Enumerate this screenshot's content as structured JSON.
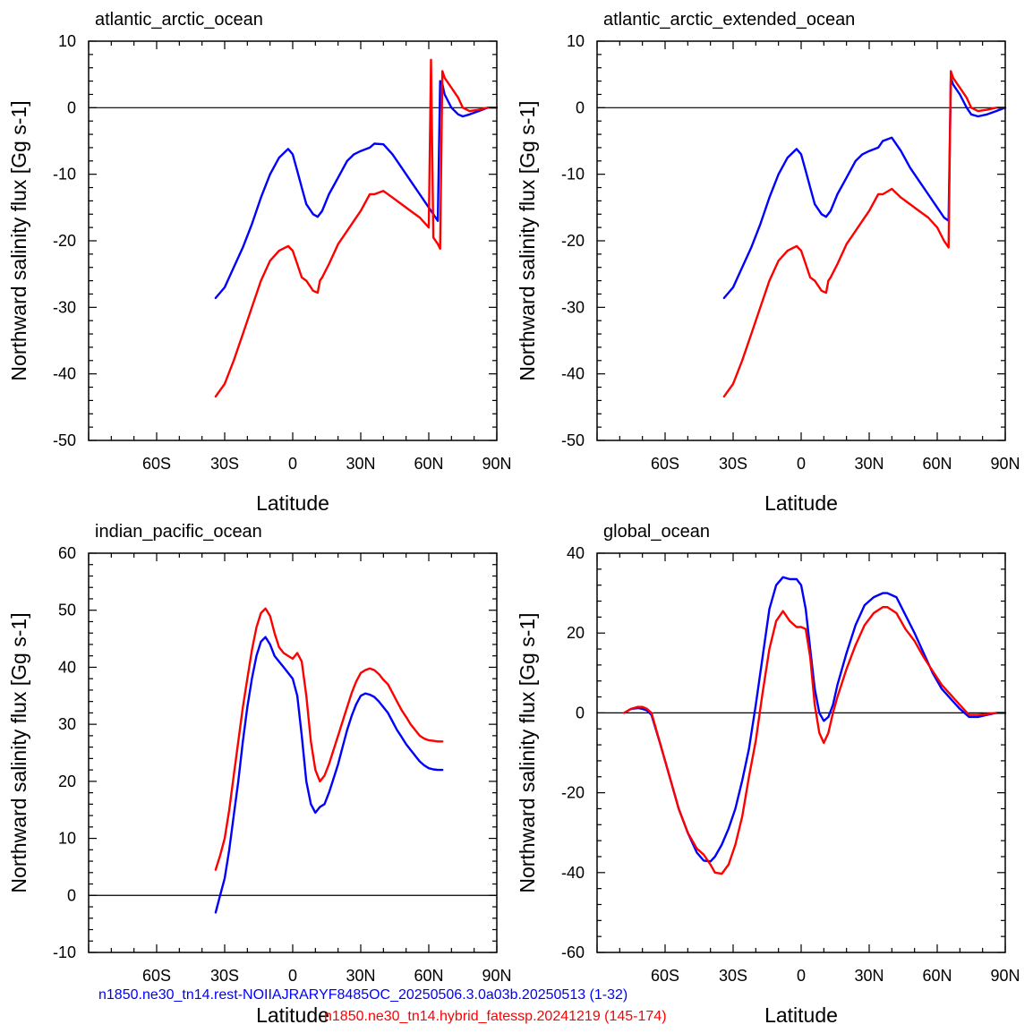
{
  "colors": {
    "run1": "#0000ff",
    "run2": "#ff0000",
    "axis": "#000000",
    "zero_line": "#000000"
  },
  "footer": {
    "run1_label": "n1850.ne30_tn14.rest-NOIIAJRARYF8485OC_20250506.3.0a03b.20250513 (1-32)",
    "run2_label": "n1850.ne30_tn14.hybrid_fatessp.20241219 (145-174)"
  },
  "chart_data": [
    {
      "type": "line",
      "title": "atlantic_arctic_ocean",
      "xlabel": "Latitude",
      "ylabel": "Northward salinity flux [Gg s-1]",
      "xlim": [
        -90,
        90
      ],
      "ylim": [
        -50,
        10
      ],
      "xticks": [
        -60,
        -30,
        0,
        30,
        60,
        90
      ],
      "xtick_labels": [
        "60S",
        "30S",
        "0",
        "30N",
        "60N",
        "90N"
      ],
      "yticks": [
        -50,
        -40,
        -30,
        -20,
        -10,
        0,
        10
      ],
      "ytick_labels": [
        "-50",
        "-40",
        "-30",
        "-20",
        "-10",
        "0",
        "10"
      ],
      "zero_line": true,
      "series": [
        {
          "name": "n1850.ne30_tn14.rest-NOIIAJRARYF8485OC_20250506.3.0a03b.20250513 (1-32)",
          "color": "#0000ff",
          "x": [
            -34,
            -30,
            -26,
            -22,
            -18,
            -14,
            -10,
            -6,
            -2,
            0,
            2,
            4,
            6,
            9,
            11,
            13,
            16,
            20,
            24,
            27,
            30,
            34,
            36,
            40,
            44,
            48,
            52,
            56,
            60,
            63,
            64,
            65,
            66,
            67,
            70,
            73,
            75,
            78,
            82,
            86,
            90
          ],
          "y": [
            -28.6,
            -27,
            -24,
            -21,
            -17.5,
            -13.5,
            -10,
            -7.5,
            -6.2,
            -7,
            -9.5,
            -12,
            -14.5,
            -16,
            -16.4,
            -15.5,
            -13,
            -10.5,
            -8,
            -7,
            -6.5,
            -6,
            -5.4,
            -5.5,
            -7,
            -9,
            -11,
            -13,
            -15,
            -16.5,
            -17,
            4,
            3.5,
            2,
            0,
            -1,
            -1.3,
            -1,
            -0.5,
            0,
            0
          ]
        },
        {
          "name": "n1850.ne30_tn14.hybrid_fatessp.20241219 (145-174)",
          "color": "#ff0000",
          "x": [
            -34,
            -30,
            -26,
            -22,
            -18,
            -14,
            -10,
            -6,
            -2,
            0,
            2,
            4,
            6,
            9,
            11,
            12,
            13,
            16,
            20,
            24,
            27,
            30,
            34,
            36,
            40,
            44,
            48,
            52,
            56,
            60,
            61,
            62,
            64,
            65,
            66,
            67,
            70,
            73,
            75,
            78,
            82,
            86,
            90
          ],
          "y": [
            -43.4,
            -41.5,
            -38,
            -34,
            -30,
            -26,
            -23,
            -21.5,
            -20.8,
            -21.5,
            -23.5,
            -25.5,
            -26,
            -27.5,
            -27.8,
            -26,
            -25.5,
            -23.5,
            -20.5,
            -18.5,
            -17,
            -15.5,
            -13,
            -13,
            -12.5,
            -13.5,
            -14.5,
            -15.5,
            -16.5,
            -18,
            7.2,
            -19.5,
            -20.5,
            -21.2,
            5.5,
            4.5,
            3,
            1.5,
            0,
            -0.5,
            -0.3,
            0,
            0
          ]
        }
      ]
    },
    {
      "type": "line",
      "title": "atlantic_arctic_extended_ocean",
      "xlabel": "Latitude",
      "ylabel": "Northward salinity flux [Gg s-1]",
      "xlim": [
        -90,
        90
      ],
      "ylim": [
        -50,
        10
      ],
      "xticks": [
        -60,
        -30,
        0,
        30,
        60,
        90
      ],
      "xtick_labels": [
        "60S",
        "30S",
        "0",
        "30N",
        "60N",
        "90N"
      ],
      "yticks": [
        -50,
        -40,
        -30,
        -20,
        -10,
        0,
        10
      ],
      "ytick_labels": [
        "-50",
        "-40",
        "-30",
        "-20",
        "-10",
        "0",
        "10"
      ],
      "zero_line": true,
      "series": [
        {
          "name": "n1850.ne30_tn14.rest-NOIIAJRARYF8485OC_20250506.3.0a03b.20250513 (1-32)",
          "color": "#0000ff",
          "x": [
            -34,
            -30,
            -26,
            -22,
            -18,
            -14,
            -10,
            -6,
            -2,
            0,
            2,
            4,
            6,
            9,
            11,
            13,
            16,
            20,
            24,
            27,
            30,
            34,
            36,
            40,
            44,
            48,
            52,
            56,
            60,
            63,
            65,
            66,
            67,
            70,
            73,
            75,
            78,
            82,
            86,
            90
          ],
          "y": [
            -28.6,
            -27,
            -24,
            -21,
            -17.5,
            -13.5,
            -10,
            -7.5,
            -6.2,
            -7,
            -9.5,
            -12,
            -14.5,
            -16,
            -16.4,
            -15.5,
            -13,
            -10.5,
            -8,
            -7,
            -6.5,
            -6,
            -5,
            -4.5,
            -6.5,
            -9,
            -11,
            -13,
            -15,
            -16.5,
            -17,
            4.5,
            3.5,
            2,
            0,
            -1,
            -1.3,
            -1,
            -0.5,
            0
          ]
        },
        {
          "name": "n1850.ne30_tn14.hybrid_fatessp.20241219 (145-174)",
          "color": "#ff0000",
          "x": [
            -34,
            -30,
            -26,
            -22,
            -18,
            -14,
            -10,
            -6,
            -2,
            0,
            2,
            4,
            6,
            9,
            11,
            12,
            13,
            16,
            20,
            24,
            27,
            30,
            34,
            36,
            40,
            44,
            48,
            52,
            56,
            60,
            63,
            65,
            66,
            67,
            70,
            73,
            75,
            78,
            82,
            86,
            90
          ],
          "y": [
            -43.4,
            -41.5,
            -38,
            -34,
            -30,
            -26,
            -23,
            -21.5,
            -20.8,
            -21.5,
            -23.5,
            -25.5,
            -26,
            -27.5,
            -27.8,
            -26,
            -25.5,
            -23.5,
            -20.5,
            -18.5,
            -17,
            -15.5,
            -13,
            -13,
            -12.2,
            -13.5,
            -14.5,
            -15.5,
            -16.5,
            -18,
            -20,
            -21,
            5.5,
            4.5,
            3,
            1.5,
            0,
            -0.5,
            -0.3,
            0,
            0
          ]
        }
      ]
    },
    {
      "type": "line",
      "title": "indian_pacific_ocean",
      "xlabel": "Latitude",
      "ylabel": "Northward salinity flux [Gg s-1]",
      "xlim": [
        -90,
        90
      ],
      "ylim": [
        -10,
        60
      ],
      "xticks": [
        -60,
        -30,
        0,
        30,
        60,
        90
      ],
      "xtick_labels": [
        "60S",
        "30S",
        "0",
        "30N",
        "60N",
        "90N"
      ],
      "yticks": [
        -10,
        0,
        10,
        20,
        30,
        40,
        50,
        60
      ],
      "ytick_labels": [
        "-10",
        "0",
        "10",
        "20",
        "30",
        "40",
        "50",
        "60"
      ],
      "zero_line": true,
      "series": [
        {
          "name": "n1850.ne30_tn14.rest-NOIIAJRARYF8485OC_20250506.3.0a03b.20250513 (1-32)",
          "color": "#0000ff",
          "x": [
            -34,
            -32,
            -30,
            -28,
            -26,
            -24,
            -22,
            -20,
            -18,
            -16,
            -14,
            -12,
            -10,
            -8,
            -6,
            -4,
            -2,
            0,
            2,
            4,
            6,
            8,
            10,
            12,
            14,
            16,
            18,
            20,
            22,
            24,
            26,
            28,
            30,
            32,
            34,
            36,
            38,
            40,
            42,
            44,
            46,
            48,
            50,
            52,
            54,
            56,
            58,
            60,
            62,
            64,
            66
          ],
          "y": [
            -3,
            0,
            3,
            8,
            14,
            20,
            27,
            33,
            38,
            42,
            44.5,
            45.3,
            44,
            42,
            41,
            40,
            39,
            38,
            35,
            28,
            20,
            16,
            14.5,
            15.5,
            16,
            18,
            20.5,
            23,
            26,
            29,
            31.5,
            33.5,
            35,
            35.4,
            35.2,
            34.8,
            34,
            33,
            32,
            30.5,
            29,
            27.8,
            26.5,
            25.5,
            24.5,
            23.5,
            22.8,
            22.3,
            22.1,
            22.0,
            22.0
          ]
        },
        {
          "name": "n1850.ne30_tn14.hybrid_fatessp.20241219 (145-174)",
          "color": "#ff0000",
          "x": [
            -34,
            -32,
            -30,
            -28,
            -26,
            -24,
            -22,
            -20,
            -18,
            -16,
            -14,
            -12,
            -10,
            -8,
            -6,
            -4,
            -2,
            0,
            2,
            4,
            6,
            8,
            10,
            12,
            14,
            16,
            18,
            20,
            22,
            24,
            26,
            28,
            30,
            32,
            34,
            36,
            38,
            40,
            42,
            44,
            46,
            48,
            50,
            52,
            54,
            56,
            58,
            60,
            62,
            64,
            66
          ],
          "y": [
            4.5,
            7,
            10,
            15,
            21,
            27,
            33,
            38,
            43,
            47,
            49.5,
            50.3,
            49,
            46,
            43.5,
            42.5,
            42,
            41.5,
            42.5,
            41,
            35,
            27,
            22,
            20,
            21,
            23,
            25.5,
            28,
            30.5,
            33,
            35.5,
            37.5,
            39,
            39.5,
            39.8,
            39.5,
            38.8,
            37.8,
            37,
            35.5,
            34,
            32.5,
            31.3,
            30,
            29,
            28,
            27.5,
            27.2,
            27.1,
            27.0,
            27.0
          ]
        }
      ]
    },
    {
      "type": "line",
      "title": "global_ocean",
      "xlabel": "Latitude",
      "ylabel": "Northward salinity flux [Gg s-1]",
      "xlim": [
        -90,
        90
      ],
      "ylim": [
        -60,
        40
      ],
      "xticks": [
        -60,
        -30,
        0,
        30,
        60,
        90
      ],
      "xtick_labels": [
        "60S",
        "30S",
        "0",
        "30N",
        "60N",
        "90N"
      ],
      "yticks": [
        -60,
        -40,
        -20,
        0,
        20,
        40
      ],
      "ytick_labels": [
        "-60",
        "-40",
        "-20",
        "0",
        "20",
        "40"
      ],
      "zero_line": true,
      "series": [
        {
          "name": "n1850.ne30_tn14.rest-NOIIAJRARYF8485OC_20250506.3.0a03b.20250513 (1-32)",
          "color": "#0000ff",
          "x": [
            -78,
            -75,
            -72,
            -70,
            -68,
            -66,
            -62,
            -58,
            -54,
            -50,
            -46,
            -43,
            -40,
            -38,
            -35,
            -32,
            -29,
            -26,
            -23,
            -20,
            -17,
            -14,
            -11,
            -8,
            -5,
            -2,
            0,
            2,
            4,
            6,
            8,
            10,
            12,
            14,
            16,
            20,
            24,
            28,
            32,
            36,
            38,
            42,
            46,
            50,
            54,
            58,
            62,
            66,
            70,
            74,
            78,
            82,
            86,
            90
          ],
          "y": [
            0,
            1,
            1.2,
            1,
            0.6,
            -0.5,
            -8,
            -16,
            -24,
            -30,
            -35,
            -37,
            -37.2,
            -36,
            -33,
            -29,
            -24,
            -17,
            -9,
            2,
            14,
            26,
            32,
            34,
            33.5,
            33.5,
            32,
            26,
            16,
            6,
            0,
            -2,
            -1,
            2,
            7,
            15,
            22,
            27,
            29,
            30,
            30,
            29,
            24.5,
            20,
            15,
            10,
            6,
            3.5,
            1,
            -1,
            -1,
            -0.5,
            0,
            0
          ]
        },
        {
          "name": "n1850.ne30_tn14.hybrid_fatessp.20241219 (145-174)",
          "color": "#ff0000",
          "x": [
            -78,
            -75,
            -72,
            -70,
            -68,
            -66,
            -62,
            -58,
            -54,
            -50,
            -46,
            -43,
            -40,
            -38,
            -35,
            -32,
            -29,
            -26,
            -23,
            -20,
            -17,
            -14,
            -11,
            -8,
            -5,
            -2,
            0,
            2,
            4,
            6,
            8,
            10,
            12,
            14,
            16,
            20,
            24,
            28,
            32,
            36,
            38,
            42,
            46,
            50,
            54,
            58,
            62,
            66,
            70,
            74,
            78,
            82,
            86,
            90
          ],
          "y": [
            0,
            1,
            1.5,
            1.5,
            1,
            0,
            -8,
            -16,
            -24,
            -30,
            -34,
            -35.5,
            -38,
            -40,
            -40.3,
            -38,
            -33,
            -26,
            -16,
            -7,
            5,
            16,
            23,
            25.5,
            23,
            21.5,
            21.5,
            21,
            14,
            2,
            -5,
            -7.5,
            -5,
            0,
            4,
            11,
            17,
            22,
            25,
            26.5,
            26.5,
            25,
            21,
            18,
            14,
            10.5,
            7,
            4.5,
            2,
            -0.5,
            -0.5,
            -0.3,
            0,
            0
          ]
        }
      ]
    }
  ]
}
